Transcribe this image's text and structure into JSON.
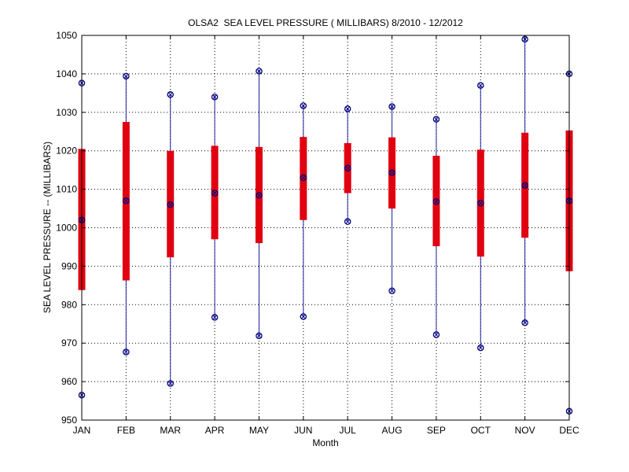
{
  "chart_data": {
    "type": "box",
    "title": "OLSA2  SEA LEVEL PRESSURE ( MILLIBARS) 8/2010 - 12/2012",
    "xlabel": "Month",
    "ylabel": "SEA LEVEL PRESSURE -- (MILLIBARS)",
    "ylim": [
      950,
      1050
    ],
    "yticks": [
      950,
      960,
      970,
      980,
      990,
      1000,
      1010,
      1020,
      1030,
      1040,
      1050
    ],
    "grid": true,
    "categories": [
      "JAN",
      "FEB",
      "MAR",
      "APR",
      "MAY",
      "JUN",
      "JUL",
      "AUG",
      "SEP",
      "OCT",
      "NOV",
      "DEC"
    ],
    "min": [
      956.5,
      967.7,
      959.5,
      976.7,
      971.9,
      976.9,
      1001.6,
      983.6,
      972.2,
      968.8,
      975.3,
      952.3
    ],
    "q1": [
      983.8,
      986.3,
      992.3,
      997.0,
      996.0,
      1002.0,
      1009.0,
      1005.0,
      995.2,
      992.5,
      997.4,
      988.7
    ],
    "median": [
      1002.0,
      1007.0,
      1006.0,
      1009.0,
      1008.4,
      1013.0,
      1015.5,
      1014.3,
      1006.8,
      1006.4,
      1011.0,
      1007.0
    ],
    "q3": [
      1020.5,
      1027.5,
      1020.0,
      1021.3,
      1021.0,
      1023.6,
      1022.0,
      1023.5,
      1018.7,
      1020.3,
      1024.7,
      1025.3
    ],
    "max": [
      1037.6,
      1039.4,
      1034.6,
      1034.0,
      1040.7,
      1031.7,
      1030.9,
      1031.5,
      1028.2,
      1037.0,
      1049.0,
      1040.0
    ],
    "colors": {
      "whisker": "#2020a0",
      "box": "#e00010",
      "marker": "#000080",
      "axis": "#000000"
    }
  }
}
